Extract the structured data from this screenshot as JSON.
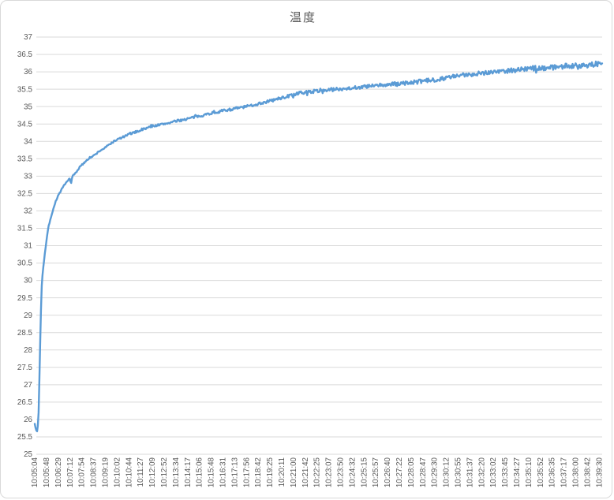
{
  "chart_data": {
    "type": "line",
    "title": "温度",
    "grid": "horizontal",
    "legend": "none",
    "ylim": [
      25,
      37
    ],
    "y_tick_step": 0.5,
    "y_ticks": [
      37,
      36.5,
      36,
      35.5,
      35,
      34.5,
      34,
      33.5,
      33,
      32.5,
      32,
      31.5,
      31,
      30.5,
      30,
      29.5,
      29,
      28.5,
      28,
      27.5,
      27,
      26.5,
      26,
      25.5,
      25
    ],
    "x_tick_labels": [
      "10:05:04",
      "10:05:48",
      "10:06:29",
      "10:07:12",
      "10:07:54",
      "10:08:37",
      "10:09:19",
      "10:10:02",
      "10:10:44",
      "10:11:27",
      "10:12:09",
      "10:12:52",
      "10:13:34",
      "10:14:17",
      "10:15:06",
      "10:15:48",
      "10:16:31",
      "10:17:13",
      "10:17:56",
      "10:18:42",
      "10:19:25",
      "10:20:11",
      "10:21:00",
      "10:21:42",
      "10:22:25",
      "10:23:07",
      "10:23:50",
      "10:24:32",
      "10:25:15",
      "10:25:57",
      "10:26:40",
      "10:27:22",
      "10:28:05",
      "10:28:47",
      "10:29:30",
      "10:30:12",
      "10:30:55",
      "10:31:37",
      "10:32:20",
      "10:33:02",
      "10:33:45",
      "10:34:27",
      "10:35:10",
      "10:35:52",
      "10:36:35",
      "10:37:17",
      "10:38:00",
      "10:38:42",
      "10:39:30"
    ],
    "series": [
      {
        "name": "温度",
        "color": "#5B9BD5",
        "stroke_width": 2.4,
        "x_unit": "category-index (aligned to x_tick_labels)",
        "y_unit": "°C",
        "points": [
          [
            0,
            25.88
          ],
          [
            0.1,
            25.7
          ],
          [
            0.2,
            25.66
          ],
          [
            0.3,
            25.9
          ],
          [
            0.35,
            26.4
          ],
          [
            0.4,
            27.2
          ],
          [
            0.45,
            28.0
          ],
          [
            0.5,
            28.8
          ],
          [
            0.55,
            29.4
          ],
          [
            0.6,
            29.9
          ],
          [
            0.7,
            30.3
          ],
          [
            0.8,
            30.6
          ],
          [
            0.9,
            30.9
          ],
          [
            1.0,
            31.15
          ],
          [
            1.15,
            31.5
          ],
          [
            1.35,
            31.8
          ],
          [
            1.5,
            31.95
          ],
          [
            1.7,
            32.2
          ],
          [
            2.0,
            32.45
          ],
          [
            2.35,
            32.65
          ],
          [
            2.7,
            32.82
          ],
          [
            3.0,
            32.95
          ],
          [
            3.1,
            32.78
          ],
          [
            3.2,
            33.0
          ],
          [
            3.5,
            33.1
          ],
          [
            3.8,
            33.25
          ],
          [
            4.2,
            33.38
          ],
          [
            4.5,
            33.5
          ],
          [
            5.0,
            33.58
          ],
          [
            5.5,
            33.72
          ],
          [
            6.0,
            33.82
          ],
          [
            6.5,
            33.95
          ],
          [
            7.0,
            34.05
          ],
          [
            7.5,
            34.12
          ],
          [
            8.0,
            34.2
          ],
          [
            9.0,
            34.32
          ],
          [
            10.0,
            34.44
          ],
          [
            11.0,
            34.5
          ],
          [
            12.0,
            34.58
          ],
          [
            13.0,
            34.65
          ],
          [
            14.0,
            34.73
          ],
          [
            15.0,
            34.81
          ],
          [
            16.0,
            34.88
          ],
          [
            17.0,
            34.94
          ],
          [
            18.0,
            35.0
          ],
          [
            19.0,
            35.08
          ],
          [
            20.0,
            35.16
          ],
          [
            21.0,
            35.25
          ],
          [
            22.0,
            35.34
          ],
          [
            23.0,
            35.41
          ],
          [
            24.0,
            35.45
          ],
          [
            25.0,
            35.48
          ],
          [
            26.0,
            35.51
          ],
          [
            27.0,
            35.54
          ],
          [
            28.0,
            35.57
          ],
          [
            29.0,
            35.6
          ],
          [
            30.0,
            35.63
          ],
          [
            31.0,
            35.66
          ],
          [
            32.0,
            35.69
          ],
          [
            33.0,
            35.73
          ],
          [
            34.0,
            35.77
          ],
          [
            35.0,
            35.83
          ],
          [
            36.0,
            35.88
          ],
          [
            37.0,
            35.93
          ],
          [
            38.0,
            35.97
          ],
          [
            39.0,
            36.0
          ],
          [
            40.0,
            36.03
          ],
          [
            41.0,
            36.06
          ],
          [
            42.0,
            36.09
          ],
          [
            43.0,
            36.11
          ],
          [
            44.0,
            36.13
          ],
          [
            45.0,
            36.16
          ],
          [
            46.0,
            36.18
          ],
          [
            47.0,
            36.2
          ],
          [
            48.0,
            36.23
          ],
          [
            48.3,
            36.24
          ]
        ],
        "noise_band": {
          "start_amp": 0.018,
          "end_amp": 0.08
        }
      }
    ],
    "colors": {
      "line": "#5B9BD5",
      "gridline": "#D9D9D9",
      "tick_text": "#595959",
      "title_text": "#595959",
      "frame_border": "#D9D9D9",
      "background": "#FFFFFF"
    }
  }
}
